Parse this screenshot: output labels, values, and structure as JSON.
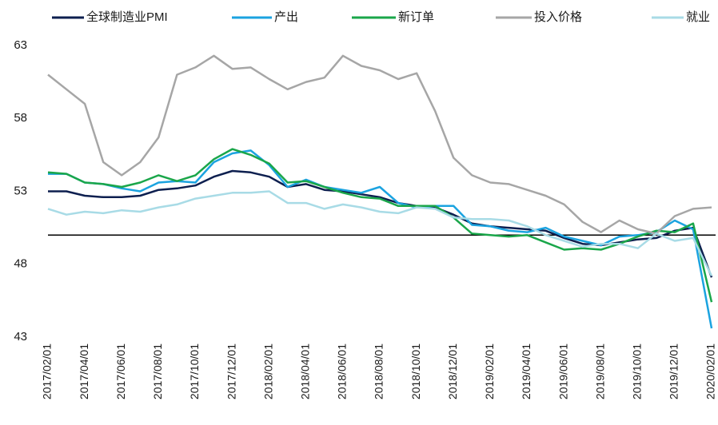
{
  "chart_data": {
    "type": "line",
    "categories": [
      "2017/02/01",
      null,
      "2017/04/01",
      null,
      "2017/06/01",
      null,
      "2017/08/01",
      null,
      "2017/10/01",
      null,
      "2017/12/01",
      null,
      "2018/02/01",
      null,
      "2018/04/01",
      null,
      "2018/06/01",
      null,
      "2018/08/01",
      null,
      "2018/10/01",
      null,
      "2018/12/01",
      null,
      "2019/02/01",
      null,
      "2019/04/01",
      null,
      "2019/06/01",
      null,
      "2019/08/01",
      null,
      "2019/10/01",
      null,
      "2019/12/01",
      null,
      "2020/02/01"
    ],
    "series": [
      {
        "name": "全球制造业PMI",
        "color": "#0d1f4f",
        "values": [
          53.0,
          53.0,
          52.7,
          52.6,
          52.6,
          52.7,
          53.1,
          53.2,
          53.4,
          54.0,
          54.4,
          54.3,
          54.0,
          53.3,
          53.5,
          53.1,
          53.0,
          52.8,
          52.6,
          52.2,
          52.0,
          51.9,
          51.4,
          50.8,
          50.6,
          50.5,
          50.4,
          50.3,
          49.8,
          49.4,
          49.3,
          49.5,
          49.7,
          49.8,
          50.3,
          50.5,
          47.1
        ]
      },
      {
        "name": "产出",
        "color": "#1ba3e0",
        "values": [
          54.2,
          54.2,
          53.6,
          53.5,
          53.2,
          53.0,
          53.6,
          53.7,
          53.6,
          55.0,
          55.6,
          55.8,
          54.8,
          53.3,
          53.8,
          53.3,
          53.1,
          52.9,
          53.3,
          52.2,
          51.9,
          52.0,
          52.0,
          50.7,
          50.6,
          50.3,
          50.2,
          50.5,
          49.9,
          49.6,
          49.3,
          49.9,
          50.0,
          50.2,
          51.0,
          50.4,
          43.6
        ]
      },
      {
        "name": "新订单",
        "color": "#1aa64a",
        "values": [
          54.3,
          54.2,
          53.6,
          53.5,
          53.3,
          53.6,
          54.1,
          53.7,
          54.1,
          55.2,
          55.9,
          55.5,
          54.9,
          53.6,
          53.7,
          53.3,
          52.9,
          52.6,
          52.5,
          52.0,
          52.0,
          52.0,
          51.2,
          50.1,
          50.0,
          49.9,
          50.0,
          49.5,
          49.0,
          49.1,
          49.0,
          49.4,
          49.9,
          50.3,
          50.2,
          50.8,
          45.4
        ]
      },
      {
        "name": "投入价格",
        "color": "#a6a6a6",
        "values": [
          61.0,
          60.0,
          59.0,
          55.0,
          54.1,
          55.0,
          56.7,
          61.0,
          61.5,
          62.3,
          61.4,
          61.5,
          60.7,
          60.0,
          60.5,
          60.8,
          62.3,
          61.6,
          61.3,
          60.7,
          61.1,
          58.5,
          55.3,
          54.1,
          53.6,
          53.5,
          53.1,
          52.7,
          52.1,
          50.9,
          50.2,
          51.0,
          50.4,
          50.1,
          51.3,
          51.8,
          51.9
        ]
      },
      {
        "name": "就业",
        "color": "#a8dbe6",
        "values": [
          51.8,
          51.4,
          51.6,
          51.5,
          51.7,
          51.6,
          51.9,
          52.1,
          52.5,
          52.7,
          52.9,
          52.9,
          53.0,
          52.2,
          52.2,
          51.8,
          52.1,
          51.9,
          51.6,
          51.5,
          51.9,
          51.8,
          51.2,
          51.1,
          51.1,
          51.0,
          50.6,
          50.0,
          49.6,
          49.2,
          49.4,
          49.4,
          49.1,
          50.1,
          49.6,
          49.8,
          47.2
        ]
      }
    ],
    "ylim": [
      43,
      63
    ],
    "yticks": [
      43,
      48,
      53,
      58,
      63
    ],
    "reference_line": 50,
    "grid": false,
    "legend": "top"
  }
}
